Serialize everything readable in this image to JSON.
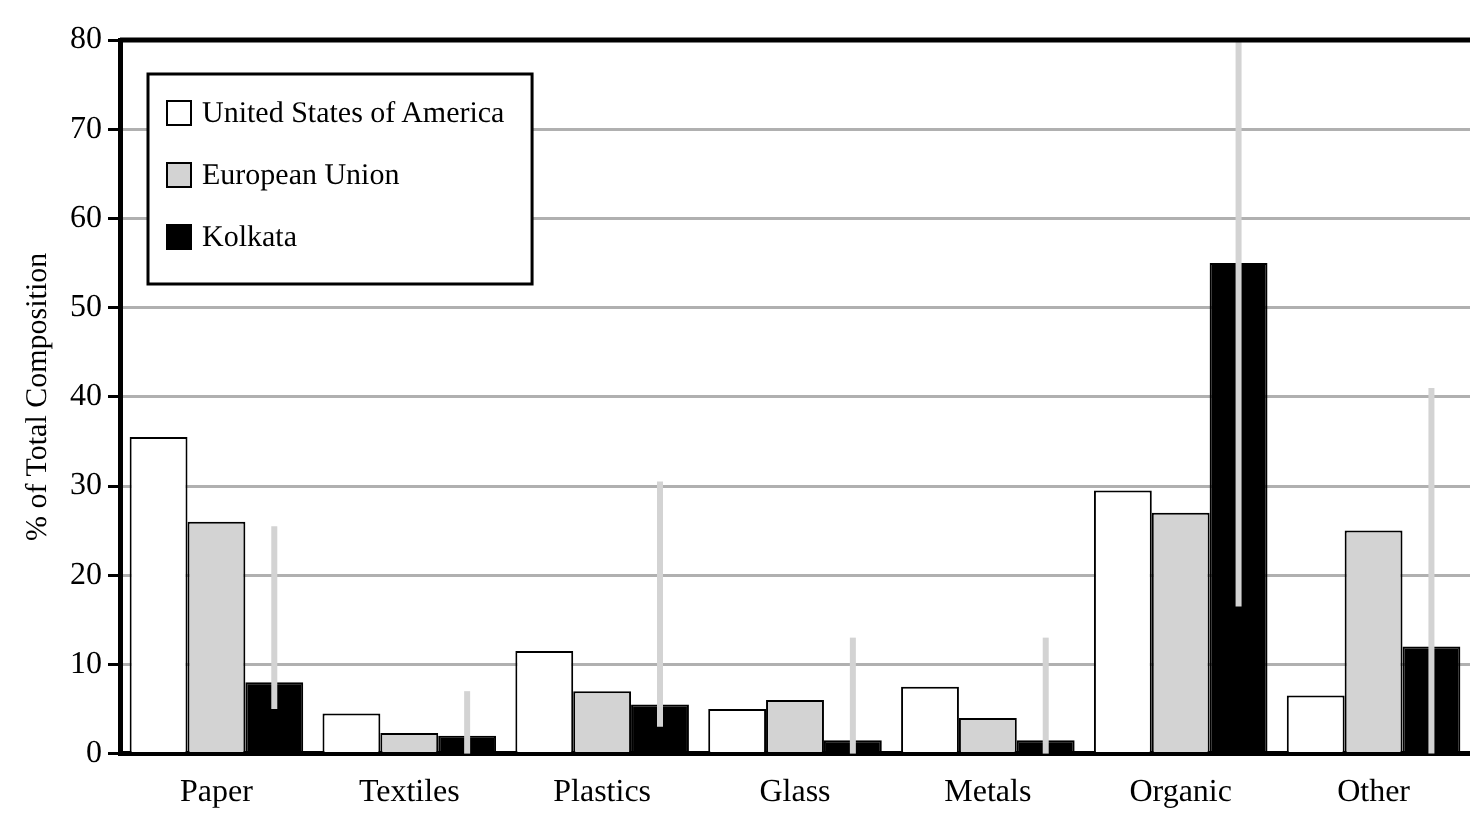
{
  "chart_data": {
    "type": "bar",
    "ylabel": "% of Total Composition",
    "categories": [
      "Paper",
      "Textiles",
      "Plastics",
      "Glass",
      "Metals",
      "Organic",
      "Other"
    ],
    "series": [
      {
        "name": "United States of America",
        "color": "#ffffff",
        "values": [
          35.5,
          4.5,
          11.5,
          5,
          7.5,
          29.5,
          6.5
        ]
      },
      {
        "name": "European Union",
        "color": "#d3d3d3",
        "values": [
          26,
          2.3,
          7,
          6,
          4,
          27,
          25
        ]
      },
      {
        "name": "Kolkata",
        "color": "#000000",
        "values": [
          8,
          2,
          5.5,
          1.5,
          1.5,
          55,
          12
        ],
        "errors": [
          [
            5,
            25.5
          ],
          [
            0,
            7
          ],
          [
            3,
            30.5
          ],
          [
            0,
            13
          ],
          [
            0,
            13
          ],
          [
            16.5,
            80
          ],
          [
            0,
            41
          ]
        ]
      }
    ],
    "ylim": [
      0,
      80
    ],
    "yticks": [
      0,
      10,
      20,
      30,
      40,
      50,
      60,
      70,
      80
    ],
    "grid": "y",
    "legend": "top left"
  }
}
